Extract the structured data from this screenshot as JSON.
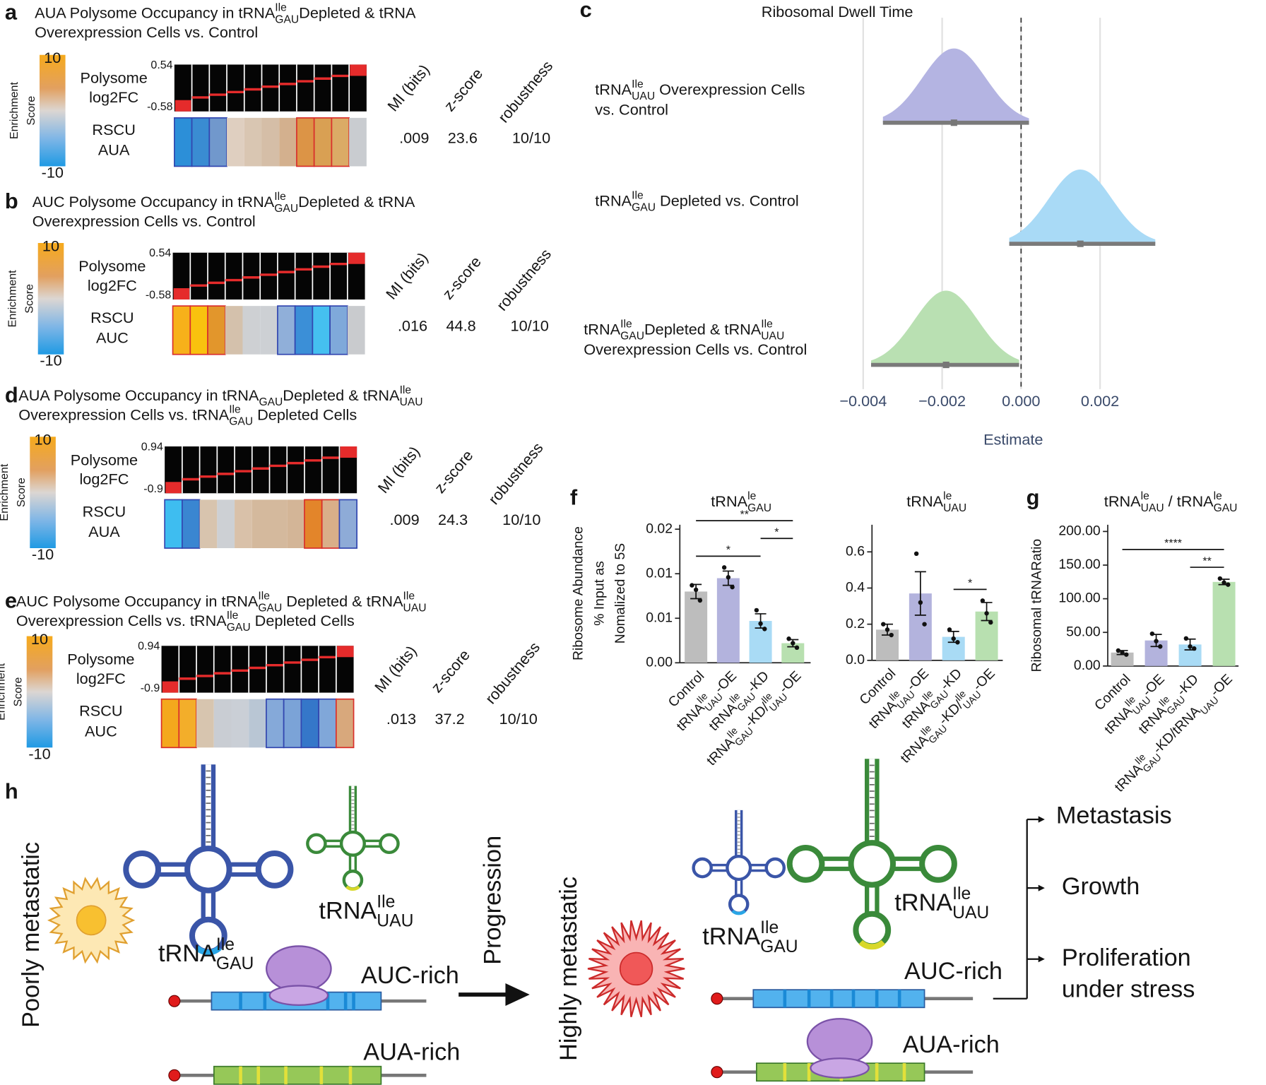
{
  "ipage": {
    "headers": [
      "MI (bits)",
      "z-score",
      "robustness"
    ],
    "scale_label": [
      "Enrichment",
      "Score"
    ],
    "row1": [
      "Polysome",
      "log2FC"
    ],
    "row2": "RSCU"
  },
  "panels": [
    {
      "label": "a",
      "title": [
        [
          "AUA Polysome Occupancy in tRNA",
          {
            "sup": "Ile"
          },
          {
            "sub": "GAU"
          },
          "Depleted & tRNA"
        ],
        [
          "Overexpression Cells vs. Control"
        ]
      ],
      "scale": [
        10,
        -10
      ],
      "fc_range": [
        0.54,
        -0.58
      ],
      "codon": "AUA",
      "stats": [
        ".009",
        "23.6",
        "10/10"
      ],
      "cells": [
        {
          "color": "#2c8fd8",
          "border": "#3347b0"
        },
        {
          "color": "#3a8cd2",
          "border": "#3347b0"
        },
        {
          "color": "#7198cc",
          "border": "#3347b0"
        },
        {
          "color": "#dfcfc0"
        },
        {
          "color": "#d9c6b2"
        },
        {
          "color": "#d5bea7"
        },
        {
          "color": "#d3b08e"
        },
        {
          "color": "#dc9446",
          "border": "#d9302c"
        },
        {
          "color": "#d9a053",
          "border": "#d9302c"
        },
        {
          "color": "#dbab66",
          "border": "#d9302c"
        },
        {
          "color": "#c9ccd0"
        }
      ]
    },
    {
      "label": "b",
      "title": [
        [
          "AUC Polysome Occupancy in tRNA",
          {
            "sup": "Ile"
          },
          {
            "sub": "GAU"
          },
          "Depleted & tRNA"
        ],
        [
          "Overexpression Cells vs. Control"
        ]
      ],
      "scale": [
        10,
        -10
      ],
      "fc_range": [
        0.54,
        -0.58
      ],
      "codon": "AUC",
      "stats": [
        ".016",
        "44.8",
        "10/10"
      ],
      "cells": [
        {
          "color": "#f7b11a",
          "border": "#d9302c"
        },
        {
          "color": "#f9c20e",
          "border": "#d9302c"
        },
        {
          "color": "#e2962c",
          "border": "#d9302c"
        },
        {
          "color": "#d4c1ac"
        },
        {
          "color": "#ced0d3"
        },
        {
          "color": "#cdd0d4"
        },
        {
          "color": "#90afd9",
          "border": "#3347b0"
        },
        {
          "color": "#3b8fd7",
          "border": "#3347b0"
        },
        {
          "color": "#45c0f0",
          "border": "#3347b0"
        },
        {
          "color": "#7fa9da",
          "border": "#3347b0"
        },
        {
          "color": "#c9cbce"
        }
      ]
    },
    {
      "label": "d",
      "title": [
        [
          "AUA Polysome Occupancy in tRNA",
          {
            "sub": "GAU"
          },
          "Depleted & tRNA",
          {
            "sup": "Ile"
          },
          {
            "sub": "UAU"
          }
        ],
        [
          "Overexpression Cells vs. tRNA",
          {
            "sup": "Ile"
          },
          {
            "sub": "GAU"
          },
          " Depleted Cells"
        ]
      ],
      "scale": [
        10,
        -10
      ],
      "fc_range": [
        0.94,
        -0.9
      ],
      "codon": "AUA",
      "stats": [
        ".009",
        "24.3",
        "10/10"
      ],
      "cells": [
        {
          "color": "#3ebdf0",
          "border": "#3347b0"
        },
        {
          "color": "#3a86d1",
          "border": "#3347b0"
        },
        {
          "color": "#d8c4ae"
        },
        {
          "color": "#cdd0d4"
        },
        {
          "color": "#d9c1a9"
        },
        {
          "color": "#d4b99d"
        },
        {
          "color": "#d4b99d"
        },
        {
          "color": "#d3b597"
        },
        {
          "color": "#e3852a",
          "border": "#d9302c"
        },
        {
          "color": "#d9af89",
          "border": "#d9302c"
        },
        {
          "color": "#8eabd7",
          "border": "#3347b0"
        }
      ]
    },
    {
      "label": "e",
      "title": [
        [
          "AUC Polysome Occupancy in tRNA",
          {
            "sup": "Ile"
          },
          {
            "sub": "GAU"
          },
          " Depleted & tRNA",
          {
            "sup": "Ile"
          },
          {
            "sub": "UAU"
          }
        ],
        [
          "Overexpression Cells vs. tRNA",
          {
            "sup": "Ile"
          },
          {
            "sub": "GAU"
          },
          " Depleted Cells"
        ]
      ],
      "scale": [
        10,
        -10
      ],
      "fc_range": [
        0.94,
        -0.9
      ],
      "codon": "AUC",
      "stats": [
        ".013",
        "37.2",
        "10/10"
      ],
      "cells": [
        {
          "color": "#f4a81d",
          "border": "#d9302c"
        },
        {
          "color": "#f3ae2a",
          "border": "#d9302c"
        },
        {
          "color": "#d7c5af"
        },
        {
          "color": "#c9cdd3"
        },
        {
          "color": "#cacfd6"
        },
        {
          "color": "#b9c6d4"
        },
        {
          "color": "#85a9d9",
          "border": "#3347b0"
        },
        {
          "color": "#7ba3d7",
          "border": "#3347b0"
        },
        {
          "color": "#3577c9",
          "border": "#3347b0"
        },
        {
          "color": "#80a7d9",
          "border": "#3347b0"
        },
        {
          "color": "#d8a87c",
          "border": "#d9302c"
        }
      ]
    }
  ],
  "panel_c": {
    "label": "c",
    "type": "halfeye",
    "title": "Ribosomal Dwell Time",
    "xlabel": "Estimate",
    "xlim": [
      -0.0048,
      0.0042
    ],
    "xticks": [
      {
        "value": -0.004,
        "label": "−0.004"
      },
      {
        "value": -0.002,
        "label": "−0.002"
      },
      {
        "value": 0,
        "label": "0.000"
      },
      0.002
    ],
    "ref_line": 0,
    "grid": true,
    "series": [
      {
        "name": [
          [
            "tRNA",
            {
              "sup": "Ile"
            },
            {
              "sub": "UAU"
            },
            " Overexpression Cells"
          ],
          [
            "vs. Control"
          ]
        ],
        "color": "#b4b4e2",
        "mean": -0.0017,
        "sd": 0.0008,
        "lo": -0.0035,
        "hi": 0.0002
      },
      {
        "name": [
          [
            "tRNA",
            {
              "sup": "Ile"
            },
            {
              "sub": "GAU"
            },
            " Depleted vs. Control"
          ]
        ],
        "color": "#a9daf6",
        "mean": 0.0015,
        "sd": 0.0008,
        "lo": -0.0003,
        "hi": 0.0034
      },
      {
        "name": [
          [
            "tRNA",
            {
              "sup": "Ile"
            },
            {
              "sub": "GAU"
            },
            "Depleted & tRNA",
            {
              "sup": "Ile"
            },
            {
              "sub": "UAU"
            }
          ],
          [
            "Overexpression Cells vs. Control"
          ]
        ],
        "color": "#b9e0b2",
        "mean": -0.0019,
        "sd": 0.0008,
        "lo": -0.0038,
        "hi": -5e-05
      }
    ]
  },
  "panel_f": {
    "label": "f",
    "ylabel": [
      "Ribosome Abundance",
      "% Input as",
      "Nomalized to 5S"
    ],
    "charts": [
      {
        "type": "bar",
        "title": [
          "tRNA",
          {
            "sup": "le"
          },
          {
            "sub": "GAU"
          }
        ],
        "ylim": [
          0,
          0.0155
        ],
        "yticks": [
          {
            "value": 0,
            "label": "0.00"
          },
          {
            "value": 0.005,
            "label": "0.01"
          },
          {
            "value": 0.01,
            "label": "0.01"
          },
          {
            "value": 0.015,
            "label": "0.02"
          }
        ],
        "categories": [
          [
            "Control"
          ],
          [
            "tRNA",
            {
              "sup": "Ile"
            },
            {
              "sub": "UAU"
            },
            "-OE"
          ],
          [
            "tRNA",
            {
              "sup": "Ile"
            },
            {
              "sub": "GAU"
            },
            "-KD"
          ],
          [
            "tRNA",
            {
              "sup": "Ile"
            },
            {
              "sub": "GAU"
            },
            "-KD/",
            {
              "sup": "Ile"
            },
            {
              "sub": "UAU"
            },
            "-OE"
          ]
        ],
        "colors": [
          "#bdbdbd",
          "#b3b3dd",
          "#a9dbf5",
          "#b8e0b0"
        ],
        "values": [
          0.008,
          0.0095,
          0.0047,
          0.0022
        ],
        "errors": [
          0.0008,
          0.0008,
          0.0008,
          0.0004
        ],
        "points": [
          [
            0.0087,
            0.0082,
            0.007
          ],
          [
            0.0107,
            0.0096,
            0.0085
          ],
          [
            0.0059,
            0.0044,
            0.0038
          ],
          [
            0.0027,
            0.0022,
            0.0017
          ]
        ],
        "brackets": [
          {
            "from": 0,
            "to": 2,
            "label": "*"
          },
          {
            "from": 2,
            "to": 3,
            "label": "*"
          },
          {
            "from": 0,
            "to": 3,
            "label": "**"
          }
        ]
      },
      {
        "type": "bar",
        "title": [
          "tRNA",
          {
            "sup": "le"
          },
          {
            "sub": "UAU"
          }
        ],
        "ylim": [
          0,
          0.75
        ],
        "yticks": [
          {
            "value": 0,
            "label": "0.0"
          },
          0.2,
          0.4,
          0.6
        ],
        "categories": [
          [
            "Control"
          ],
          [
            "tRNA",
            {
              "sup": "Ile"
            },
            {
              "sub": "UAU"
            },
            "-OE"
          ],
          [
            "tRNA",
            {
              "sup": "Ile"
            },
            {
              "sub": "GAU"
            },
            "-KD"
          ],
          [
            "tRNA",
            {
              "sup": "Ile"
            },
            {
              "sub": "GAU"
            },
            "-KD/",
            {
              "sup": "Ile"
            },
            {
              "sub": "UAU"
            },
            "-OE"
          ]
        ],
        "colors": [
          "#bdbdbd",
          "#b3b3dd",
          "#a9dbf5",
          "#b8e0b0"
        ],
        "values": [
          0.17,
          0.37,
          0.13,
          0.27
        ],
        "errors": [
          0.03,
          0.12,
          0.03,
          0.05
        ],
        "points": [
          [
            0.2,
            0.17,
            0.14
          ],
          [
            0.59,
            0.32,
            0.2
          ],
          [
            0.17,
            0.12,
            0.1
          ],
          [
            0.33,
            0.26,
            0.21
          ]
        ],
        "brackets": [
          {
            "from": 2,
            "to": 3,
            "label": "*"
          }
        ]
      }
    ]
  },
  "panel_g": {
    "label": "g",
    "type": "bar",
    "ylabel": "Ribosomal tRNARatio",
    "title": [
      "tRNA",
      {
        "sup": "le"
      },
      {
        "sub": "UAU"
      },
      " / tRNA",
      {
        "sup": "le"
      },
      {
        "sub": "GAU"
      }
    ],
    "ylim": [
      0,
      210
    ],
    "yticks": [
      {
        "value": 0,
        "label": "0.00"
      },
      {
        "value": 50,
        "label": "50.00"
      },
      {
        "value": 100,
        "label": "100.00"
      },
      {
        "value": 150,
        "label": "150.00"
      },
      {
        "value": 200,
        "label": "200.00"
      }
    ],
    "categories": [
      [
        "Control"
      ],
      [
        "tRNA",
        {
          "sup": "Ile"
        },
        {
          "sub": "UAU"
        },
        "-OE"
      ],
      [
        "tRNA",
        {
          "sup": "Ile"
        },
        {
          "sub": "GAU"
        },
        "-KD"
      ],
      [
        "tRNA",
        {
          "sup": "Ile"
        },
        {
          "sub": "GAU"
        },
        "-KD/tRNA",
        {
          "sub": "UAU"
        },
        "-OE"
      ]
    ],
    "colors": [
      "#bdbdbd",
      "#b3b3dd",
      "#a9dbf5",
      "#b8e0b0"
    ],
    "values": [
      20,
      38,
      32,
      125
    ],
    "errors": [
      3,
      9,
      8,
      4
    ],
    "points": [
      [
        23,
        20,
        17
      ],
      [
        48,
        37,
        29
      ],
      [
        41,
        29,
        26
      ],
      [
        130,
        124,
        121
      ]
    ],
    "brackets": [
      {
        "from": 2,
        "to": 3,
        "label": "**"
      },
      {
        "from": 0,
        "to": 3,
        "label": "****"
      }
    ]
  },
  "panel_h": {
    "label": "h",
    "left": "Poorly metastatic",
    "progression": "Progression",
    "right": "Highly metastatic",
    "trna_gau": [
      "tRNA",
      {
        "sup": "Ile"
      },
      {
        "sub": "GAU"
      }
    ],
    "trna_uau": [
      "tRNA",
      {
        "sup": "Ile"
      },
      {
        "sub": "UAU"
      }
    ],
    "auc": "AUC-rich",
    "aua": "AUA-rich",
    "outcomes": [
      "Metastasis",
      "Growth",
      "Proliferation",
      "under stress"
    ]
  }
}
